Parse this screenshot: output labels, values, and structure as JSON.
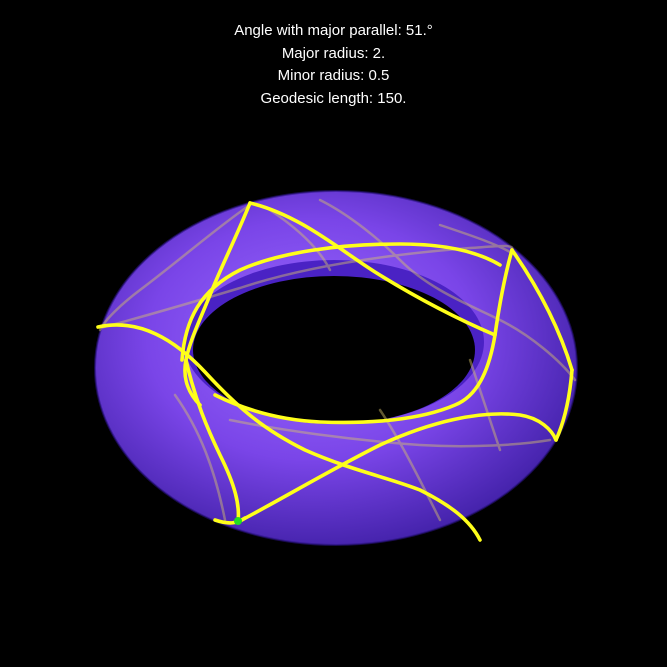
{
  "info": {
    "angle": "Angle with major parallel: 51.°",
    "major_radius": "Major radius: 2.",
    "minor_radius": "Minor radius: 0.5",
    "geodesic_length": "Geodesic length: 150."
  },
  "torus": {
    "major_radius": 2,
    "minor_radius": 0.5,
    "surface_color": "#7a45e8",
    "surface_highlight": "#9b6bff",
    "surface_shadow": "#3f1fa5",
    "hole_color": "#000000"
  },
  "geodesic": {
    "angle_deg": 51,
    "length": 150,
    "color": "#ffff1a",
    "hidden_color": "#d8c46a",
    "start_marker_color": "#22dd22"
  },
  "background_color": "#000000"
}
